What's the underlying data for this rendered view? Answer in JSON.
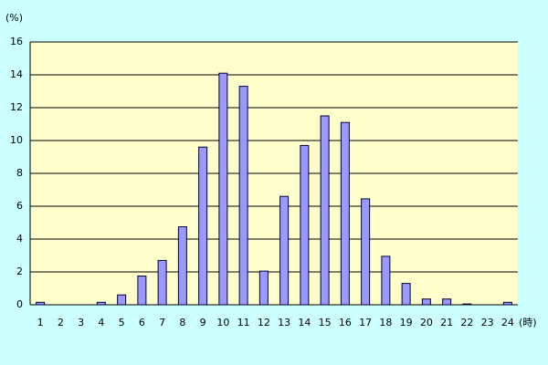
{
  "chart_data": {
    "type": "bar",
    "y_axis_label": "(%)",
    "x_axis_label": "(時)",
    "categories": [
      "1",
      "2",
      "3",
      "4",
      "5",
      "6",
      "7",
      "8",
      "9",
      "10",
      "11",
      "12",
      "13",
      "14",
      "15",
      "16",
      "17",
      "18",
      "19",
      "20",
      "21",
      "22",
      "23",
      "24"
    ],
    "values": [
      0.15,
      0,
      0,
      0.15,
      0.6,
      1.75,
      2.7,
      4.75,
      9.6,
      14.1,
      13.3,
      2.05,
      6.6,
      9.7,
      11.5,
      11.1,
      6.45,
      2.95,
      1.3,
      0.35,
      0.35,
      0.05,
      0,
      0.15
    ],
    "color": "#9999ff",
    "ylim": [
      0,
      16
    ],
    "yticks": [
      0,
      2,
      4,
      6,
      8,
      10,
      12,
      14,
      16
    ],
    "grid": true
  }
}
